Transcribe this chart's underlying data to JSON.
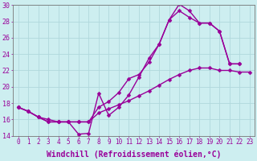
{
  "background_color": "#cdeef0",
  "grid_color": "#b0d8dc",
  "line_color": "#990099",
  "marker": "D",
  "markersize": 2.5,
  "linewidth": 1.0,
  "xlabel": "Windchill (Refroidissement éolien,°C)",
  "xlabel_fontsize": 7.0,
  "xtick_fontsize": 5.5,
  "ytick_fontsize": 6.0,
  "xlim": [
    -0.5,
    23.5
  ],
  "ylim": [
    14,
    30
  ],
  "yticks": [
    14,
    16,
    18,
    20,
    22,
    24,
    26,
    28,
    30
  ],
  "xticks": [
    0,
    1,
    2,
    3,
    4,
    5,
    6,
    7,
    8,
    9,
    10,
    11,
    12,
    13,
    14,
    15,
    16,
    17,
    18,
    19,
    20,
    21,
    22,
    23
  ],
  "series1_x": [
    0,
    1,
    2,
    3,
    4,
    5,
    6,
    7,
    8,
    9,
    10,
    11,
    12,
    13,
    14,
    15,
    16,
    17,
    18,
    19,
    20,
    21,
    22
  ],
  "series1_y": [
    17.5,
    17.0,
    16.3,
    15.7,
    15.7,
    15.7,
    14.2,
    14.3,
    19.2,
    16.5,
    17.5,
    19.0,
    21.2,
    23.5,
    25.2,
    28.2,
    30.1,
    29.3,
    27.8,
    27.8,
    26.8,
    22.8,
    22.8
  ],
  "series2_x": [
    0,
    1,
    2,
    3,
    4,
    5,
    6,
    7,
    8,
    9,
    10,
    11,
    12,
    13,
    14,
    15,
    16,
    17,
    18,
    19,
    20,
    21,
    22
  ],
  "series2_y": [
    17.5,
    17.0,
    16.3,
    15.7,
    15.7,
    15.7,
    15.7,
    15.7,
    17.5,
    18.2,
    19.3,
    21.0,
    21.5,
    23.0,
    25.2,
    28.2,
    29.3,
    28.5,
    27.8,
    27.8,
    26.8,
    22.8,
    22.8
  ],
  "series3_x": [
    0,
    1,
    2,
    3,
    4,
    5,
    6,
    7,
    8,
    9,
    10,
    11,
    12,
    13,
    14,
    15,
    16,
    17,
    18,
    19,
    20,
    21,
    22,
    23
  ],
  "series3_y": [
    17.5,
    17.0,
    16.3,
    16.0,
    15.7,
    15.7,
    15.7,
    15.7,
    16.8,
    17.3,
    17.8,
    18.3,
    18.9,
    19.5,
    20.2,
    20.9,
    21.5,
    22.0,
    22.3,
    22.3,
    22.0,
    22.0,
    21.8,
    21.8
  ]
}
